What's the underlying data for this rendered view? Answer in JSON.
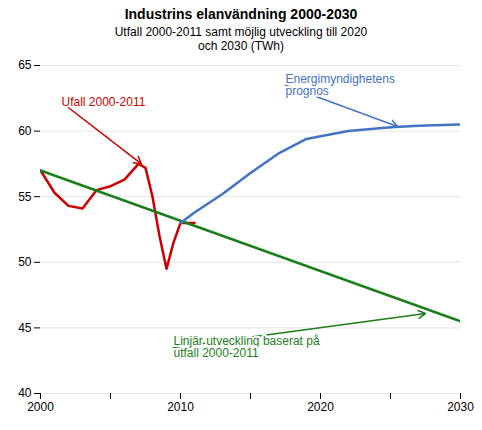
{
  "chart_data": {
    "type": "line",
    "title": "Industrins elanvändning 2000-2030",
    "subtitle": "Utfall 2000-2011 samt möjlig utveckling till 2020\noch 2030 (TWh)",
    "series": [
      {
        "color": "#cc0000",
        "x": [
          2000,
          2001,
          2002,
          2003,
          2004,
          2005,
          2006,
          2007,
          2007.5,
          2008,
          2008.5,
          2009,
          2009.5,
          2010,
          2011
        ],
        "values": [
          57.0,
          55.3,
          54.3,
          54.1,
          55.5,
          55.8,
          56.3,
          57.5,
          57.2,
          55.0,
          52.0,
          49.5,
          51.5,
          53.0,
          53.0
        ]
      },
      {
        "color": "#1a7f1a",
        "x": [
          2000,
          2030
        ],
        "values": [
          57.0,
          45.5
        ]
      },
      {
        "color": "#4472c4",
        "x": [
          2010,
          2011,
          2013,
          2015,
          2017,
          2019,
          2020,
          2022,
          2025,
          2027,
          2030
        ],
        "values": [
          53.0,
          53.8,
          55.2,
          56.8,
          58.3,
          59.4,
          59.6,
          60.0,
          60.3,
          60.4,
          60.5
        ]
      }
    ],
    "xlim": [
      2000,
      2030
    ],
    "ylim": [
      40,
      65
    ],
    "xticks": [
      {
        "value": 2000,
        "label": "2000"
      },
      {
        "value": 2005,
        "label": null
      },
      {
        "value": 2010,
        "label": "2010"
      },
      {
        "value": 2015,
        "label": null
      },
      {
        "value": 2020,
        "label": "2020"
      },
      {
        "value": 2025,
        "label": null
      },
      {
        "value": 2030,
        "label": "2030"
      }
    ],
    "yticks": [
      40,
      45,
      50,
      55,
      60,
      65
    ],
    "grid": "y",
    "annotations": [
      {
        "text": "Ufall 2000-2011",
        "color": "#cc0000",
        "text_x": 2001.5,
        "text_y": 62.2,
        "x": 2007.2,
        "y": 57.5
      },
      {
        "text": "Energimyndighetens\nprognos",
        "color": "#4472c4",
        "text_x": 2017.5,
        "text_y": 63.5,
        "x": 2025.5,
        "y": 60.35
      },
      {
        "text": "Linjär utveckling baserat på\nutfall 2000-2011",
        "color": "#1a7f1a",
        "text_x": 2009.5,
        "text_y": 43.5,
        "x": 2027.5,
        "y": 46.1
      }
    ]
  }
}
